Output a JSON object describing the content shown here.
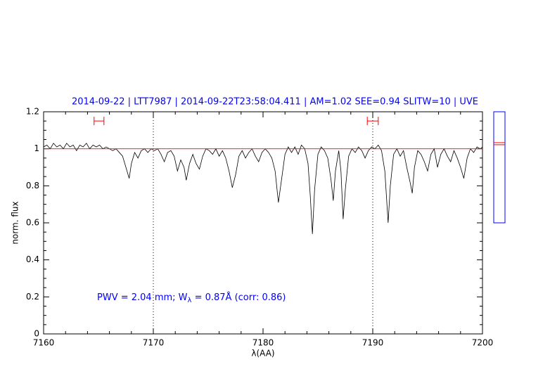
{
  "chart_data": [
    {
      "type": "line",
      "title": "2014-09-22 | LTT7987 | 2014-09-22T23:58:04.411 | AM=1.02 SEE=0.94 SLITW=10 | UVE",
      "xlabel": "λ(AA)",
      "ylabel": "norm. flux",
      "annotation": [
        "PWV = 2.04 mm; W",
        "λ",
        " = 0.87Å (corr: 0.86)"
      ],
      "annotation_color": "#0000ff",
      "title_color": "#0000ff",
      "xlim": [
        7160,
        7200
      ],
      "ylim": [
        0,
        1.2
      ],
      "xticks": [
        7160,
        7170,
        7180,
        7190,
        7200
      ],
      "yticks": [
        0,
        0.2,
        0.4,
        0.6,
        0.8,
        1,
        1.2
      ],
      "xminorticks": [
        7162,
        7164,
        7166,
        7168,
        7172,
        7174,
        7176,
        7178,
        7182,
        7184,
        7186,
        7188,
        7192,
        7194,
        7196,
        7198
      ],
      "yminorticks": [
        0.05,
        0.1,
        0.15,
        0.25,
        0.3,
        0.35,
        0.45,
        0.5,
        0.55,
        0.65,
        0.7,
        0.75,
        0.85,
        0.9,
        0.95,
        1.05,
        1.1,
        1.15
      ],
      "vlines": [
        7170,
        7190
      ],
      "continuum": 1.0,
      "continuum_color": "#ff0000",
      "ranges": [
        {
          "x": [
            7164.6,
            7165.5
          ],
          "y": 1.15
        },
        {
          "x": [
            7189.5,
            7190.5
          ],
          "y": 1.15
        }
      ],
      "range_color": "#ff0000",
      "series": [
        {
          "color": "#000000",
          "x": [
            7160,
            7160.3,
            7160.6,
            7160.9,
            7161.2,
            7161.5,
            7161.8,
            7162.1,
            7162.4,
            7162.7,
            7163,
            7163.3,
            7163.6,
            7163.9,
            7164.2,
            7164.5,
            7164.8,
            7165.1,
            7165.4,
            7165.7,
            7166,
            7166.3,
            7166.6,
            7166.9,
            7167.2,
            7167.5,
            7167.8,
            7168,
            7168.3,
            7168.6,
            7168.9,
            7169.2,
            7169.5,
            7169.8,
            7170.1,
            7170.4,
            7170.7,
            7171,
            7171.3,
            7171.6,
            7171.9,
            7172.2,
            7172.5,
            7172.8,
            7173,
            7173.3,
            7173.6,
            7173.9,
            7174.2,
            7174.5,
            7174.8,
            7175.1,
            7175.4,
            7175.7,
            7176,
            7176.3,
            7176.6,
            7176.9,
            7177.2,
            7177.5,
            7177.8,
            7178.1,
            7178.4,
            7178.7,
            7179,
            7179.3,
            7179.6,
            7179.9,
            7180.2,
            7180.5,
            7180.8,
            7181.1,
            7181.4,
            7181.7,
            7182,
            7182.3,
            7182.6,
            7182.9,
            7183.2,
            7183.5,
            7183.8,
            7184.1,
            7184.3,
            7184.5,
            7184.7,
            7185,
            7185.3,
            7185.6,
            7185.9,
            7186.2,
            7186.4,
            7186.6,
            7186.9,
            7187.1,
            7187.3,
            7187.5,
            7187.8,
            7188.1,
            7188.4,
            7188.7,
            7189,
            7189.3,
            7189.6,
            7189.9,
            7190.2,
            7190.5,
            7190.8,
            7191.1,
            7191.4,
            7191.6,
            7191.9,
            7192.2,
            7192.5,
            7192.8,
            7193.1,
            7193.4,
            7193.6,
            7193.8,
            7194.1,
            7194.4,
            7194.7,
            7195,
            7195.3,
            7195.6,
            7195.9,
            7196.2,
            7196.5,
            7196.8,
            7197.1,
            7197.4,
            7197.7,
            7198,
            7198.3,
            7198.6,
            7198.9,
            7199.2,
            7199.5,
            7199.8,
            7200
          ],
          "values": [
            1.01,
            1.02,
            1.0,
            1.03,
            1.01,
            1.02,
            1.0,
            1.03,
            1.01,
            1.02,
            0.99,
            1.02,
            1.01,
            1.03,
            1.0,
            1.02,
            1.01,
            1.02,
            1.0,
            1.01,
            1.0,
            0.99,
            1.0,
            0.98,
            0.96,
            0.9,
            0.84,
            0.92,
            0.98,
            0.95,
            0.99,
            1.0,
            0.98,
            1.0,
            0.99,
            1.0,
            0.97,
            0.93,
            0.98,
            0.99,
            0.96,
            0.88,
            0.94,
            0.9,
            0.83,
            0.92,
            0.97,
            0.92,
            0.89,
            0.96,
            1.0,
            0.99,
            0.97,
            1.0,
            0.96,
            0.99,
            0.95,
            0.88,
            0.79,
            0.86,
            0.96,
            0.99,
            0.95,
            0.98,
            1.0,
            0.96,
            0.93,
            0.98,
            1.0,
            0.98,
            0.95,
            0.88,
            0.71,
            0.84,
            0.97,
            1.01,
            0.98,
            1.01,
            0.97,
            1.02,
            1.0,
            0.92,
            0.75,
            0.54,
            0.78,
            0.97,
            1.01,
            0.99,
            0.95,
            0.83,
            0.72,
            0.88,
            0.99,
            0.88,
            0.62,
            0.78,
            0.96,
            1.0,
            0.98,
            1.01,
            0.99,
            0.95,
            0.99,
            1.01,
            1.0,
            1.02,
            0.99,
            0.88,
            0.6,
            0.8,
            0.97,
            1.0,
            0.96,
            0.99,
            0.9,
            0.82,
            0.76,
            0.9,
            0.99,
            0.97,
            0.93,
            0.88,
            0.97,
            1.0,
            0.9,
            0.97,
            1.0,
            0.96,
            0.93,
            0.99,
            0.95,
            0.9,
            0.84,
            0.95,
            1.0,
            0.98,
            1.01,
            1.0,
            1.01
          ]
        }
      ]
    },
    {
      "type": "hlines",
      "ylim": [
        0.6,
        1.2
      ],
      "frame_color": "#0000ff",
      "color": "#ff0000",
      "values": [
        1.033,
        1.022
      ]
    }
  ]
}
